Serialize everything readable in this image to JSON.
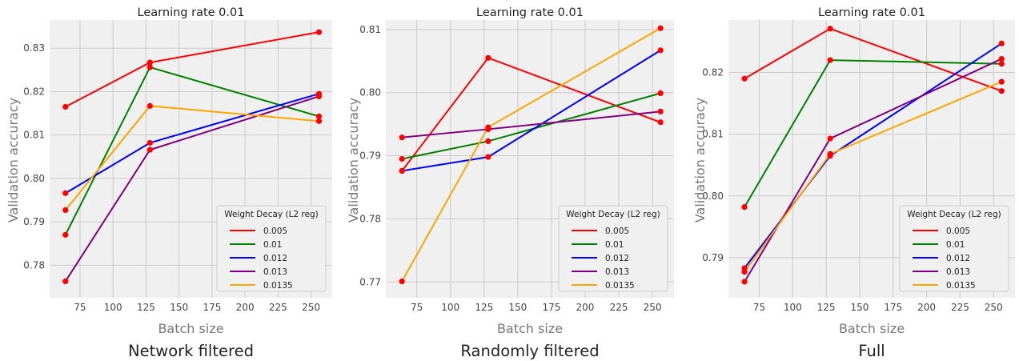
{
  "colors": {
    "0.005": "#ff0000",
    "0.01": "#008000",
    "0.012": "#0000ff",
    "0.013": "#800080",
    "0.0135": "#ffa500",
    "marker": "#ff0000"
  },
  "chart_data": [
    {
      "type": "line",
      "title": "Learning rate 0.01",
      "xlabel": "Batch size",
      "ylabel": "Validation accuracy",
      "caption": "Network filtered",
      "xlim": [
        52,
        266
      ],
      "ylim": [
        0.7725,
        0.8365
      ],
      "xticks": [
        75,
        100,
        125,
        150,
        175,
        200,
        225,
        250
      ],
      "yticks": [
        0.78,
        0.79,
        0.8,
        0.81,
        0.82,
        0.83
      ],
      "yticklabels": [
        "0.78",
        "0.79",
        "0.80",
        "0.81",
        "0.82",
        "0.83"
      ],
      "legend_title": "Weight Decay (L2 reg)",
      "legend_position": "lower-right",
      "x": [
        64,
        128,
        256
      ],
      "series": [
        {
          "name": "0.005",
          "values": [
            0.8165,
            0.8267,
            0.8337
          ]
        },
        {
          "name": "0.01",
          "values": [
            0.787,
            0.8256,
            0.8143
          ]
        },
        {
          "name": "0.012",
          "values": [
            0.7966,
            0.8082,
            0.8195
          ]
        },
        {
          "name": "0.013",
          "values": [
            0.7763,
            0.8066,
            0.8189
          ]
        },
        {
          "name": "0.0135",
          "values": [
            0.7927,
            0.8167,
            0.8132
          ]
        }
      ]
    },
    {
      "type": "line",
      "title": "Learning rate 0.01",
      "xlabel": "Batch size",
      "ylabel": "Validation accuracy",
      "caption": "Randomly filtered",
      "xlim": [
        52,
        266
      ],
      "ylim": [
        0.7675,
        0.8115
      ],
      "xticks": [
        75,
        100,
        125,
        150,
        175,
        200,
        225,
        250
      ],
      "yticks": [
        0.77,
        0.78,
        0.79,
        0.8,
        0.81
      ],
      "yticklabels": [
        "0.77",
        "0.78",
        "0.79",
        "0.80",
        "0.81"
      ],
      "legend_title": "Weight Decay (L2 reg)",
      "legend_position": "lower-right",
      "x": [
        64,
        128,
        256
      ],
      "series": [
        {
          "name": "0.005",
          "values": [
            0.7876,
            0.8055,
            0.7953
          ]
        },
        {
          "name": "0.01",
          "values": [
            0.7895,
            0.7923,
            0.7999
          ]
        },
        {
          "name": "0.012",
          "values": [
            0.7876,
            0.7898,
            0.8067
          ]
        },
        {
          "name": "0.013",
          "values": [
            0.7929,
            0.7942,
            0.797
          ]
        },
        {
          "name": "0.0135",
          "values": [
            0.7701,
            0.7945,
            0.8102
          ]
        }
      ]
    },
    {
      "type": "line",
      "title": "Learning rate 0.01",
      "xlabel": "Batch size",
      "ylabel": "Validation accuracy",
      "caption": "Full",
      "xlim": [
        52,
        266
      ],
      "ylim": [
        0.7835,
        0.8285
      ],
      "xticks": [
        75,
        100,
        125,
        150,
        175,
        200,
        225,
        250
      ],
      "yticks": [
        0.79,
        0.8,
        0.81,
        0.82
      ],
      "yticklabels": [
        "0.79",
        "0.80",
        "0.81",
        "0.82"
      ],
      "legend_title": "Weight Decay (L2 reg)",
      "legend_position": "lower-right",
      "x": [
        64,
        128,
        256
      ],
      "series": [
        {
          "name": "0.005",
          "values": [
            0.819,
            0.8271,
            0.817
          ]
        },
        {
          "name": "0.01",
          "values": [
            0.7982,
            0.822,
            0.8214
          ]
        },
        {
          "name": "0.012",
          "values": [
            0.7883,
            0.8065,
            0.8247
          ]
        },
        {
          "name": "0.013",
          "values": [
            0.7861,
            0.8093,
            0.8222
          ]
        },
        {
          "name": "0.0135",
          "values": [
            0.7877,
            0.8068,
            0.8185
          ]
        }
      ]
    }
  ]
}
